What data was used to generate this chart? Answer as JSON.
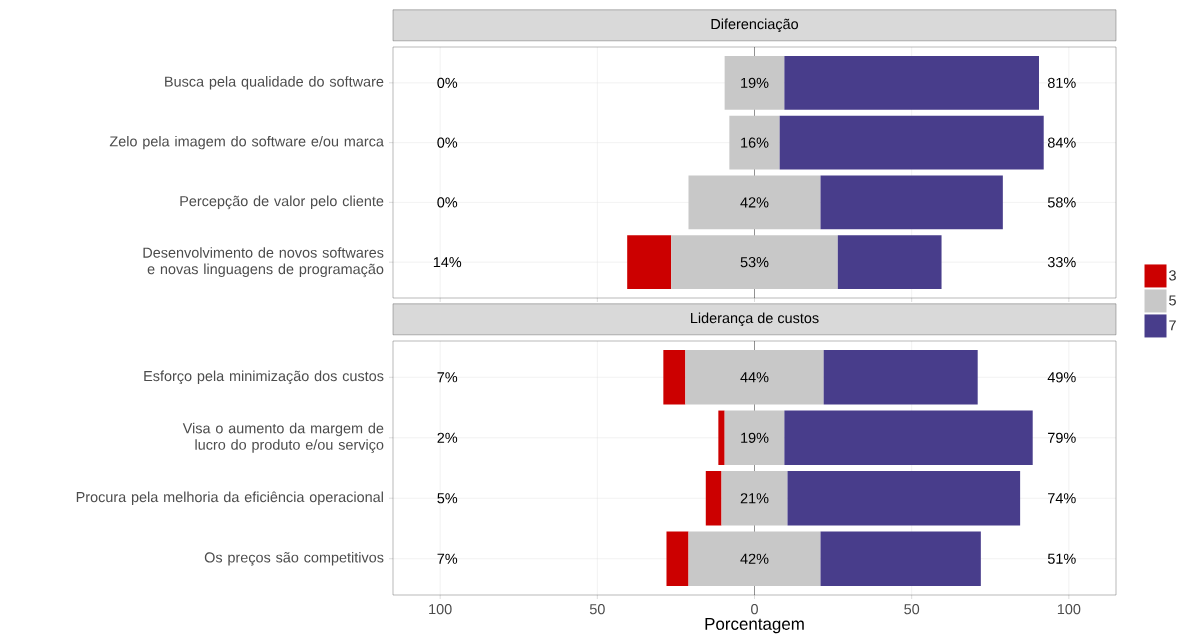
{
  "chart_data": [
    {
      "type": "bar",
      "orientation": "horizontal",
      "title": "Diferenciação",
      "categories": [
        "Busca pela qualidade do software",
        "Zelo pela imagem do software e/ou marca",
        "Percepção de valor pelo cliente",
        "Desenvolvimento de novos softwares e novas linguagens de programação"
      ],
      "series": [
        {
          "color": "#cc0000",
          "values": [
            0,
            0,
            0,
            14
          ],
          "base": [
            null,
            null,
            null,
            -40.5
          ],
          "value_labels": [
            "0%",
            "0%",
            "0%",
            "14%"
          ]
        },
        {
          "color": "#c8c8c8",
          "values": [
            19,
            16,
            42,
            53
          ],
          "base": [
            -9.5,
            -8,
            -21,
            -26.5
          ],
          "value_labels": [
            "19%",
            "16%",
            "42%",
            "53%"
          ]
        },
        {
          "color": "#483d8b",
          "values": [
            81,
            84,
            58,
            33
          ],
          "base": [
            9.5,
            8,
            21,
            26.5
          ],
          "value_labels": [
            "81%",
            "84%",
            "58%",
            "33%"
          ]
        }
      ],
      "xlim": [
        -115,
        115
      ],
      "xticks": [
        {
          "value": -100,
          "label": null
        },
        {
          "value": -50,
          "label": null
        },
        {
          "value": 0,
          "label": null
        },
        {
          "value": 50,
          "label": null
        },
        {
          "value": 100,
          "label": null
        }
      ],
      "tick_labels": "y",
      "grid": true,
      "ref_lines": [
        {
          "axis": "x",
          "value": 0,
          "color": "#000000"
        }
      ]
    },
    {
      "type": "bar",
      "orientation": "horizontal",
      "title": "Liderança de custos",
      "xlabel": "Porcentagem",
      "categories": [
        "Esforço pela minimização dos custos",
        "Visa o aumento da margem de lucro do produto e/ou serviço",
        "Procura pela melhoria da eficiência operacional",
        "Os preços são competitivos"
      ],
      "series": [
        {
          "name": "3",
          "color": "#cc0000",
          "values": [
            7,
            2,
            5,
            7
          ],
          "base": [
            -29,
            -11.5,
            -15.5,
            -28
          ],
          "value_labels": [
            "7%",
            "2%",
            "5%",
            "7%"
          ]
        },
        {
          "name": "5",
          "color": "#c8c8c8",
          "values": [
            44,
            19,
            21,
            42
          ],
          "base": [
            -22,
            -9.5,
            -10.5,
            -21
          ],
          "value_labels": [
            "44%",
            "19%",
            "21%",
            "42%"
          ]
        },
        {
          "name": "7",
          "color": "#483d8b",
          "values": [
            49,
            79,
            74,
            51
          ],
          "base": [
            22,
            9.5,
            10.5,
            21
          ],
          "value_labels": [
            "49%",
            "79%",
            "74%",
            "51%"
          ]
        }
      ],
      "xlim": [
        -115,
        115
      ],
      "xticks": [
        {
          "value": -100,
          "label": "100"
        },
        {
          "value": -50,
          "label": "50"
        },
        0,
        50,
        100
      ],
      "grid": true,
      "legend": "right",
      "ref_lines": [
        {
          "axis": "x",
          "value": 0,
          "color": "#000000"
        }
      ]
    }
  ]
}
